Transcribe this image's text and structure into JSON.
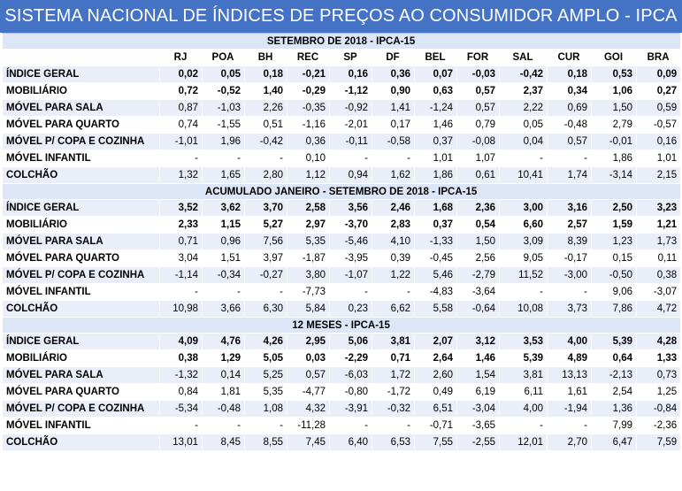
{
  "title": "SISTEMA NACIONAL DE ÍNDICES DE PREÇOS AO CONSUMIDOR AMPLO - IPCA",
  "columns": [
    "RJ",
    "POA",
    "BH",
    "REC",
    "SP",
    "DF",
    "BEL",
    "FOR",
    "SAL",
    "CUR",
    "GOI",
    "BRA"
  ],
  "sections": [
    {
      "heading": "SETEMBRO DE 2018 - IPCA-15",
      "show_columns": true,
      "rows": [
        {
          "label": "ÍNDICE GERAL",
          "bold": true,
          "values": [
            "0,02",
            "0,05",
            "0,18",
            "-0,21",
            "0,16",
            "0,36",
            "0,07",
            "-0,03",
            "-0,42",
            "0,18",
            "0,53",
            "0,09"
          ]
        },
        {
          "label": "MOBILIÁRIO",
          "bold": true,
          "values": [
            "0,72",
            "-0,52",
            "1,40",
            "-0,29",
            "-1,12",
            "0,90",
            "0,63",
            "0,57",
            "2,37",
            "0,34",
            "1,06",
            "0,27"
          ]
        },
        {
          "label": "MÓVEL PARA SALA",
          "bold": false,
          "values": [
            "0,87",
            "-1,03",
            "2,26",
            "-0,35",
            "-0,92",
            "1,41",
            "-1,24",
            "0,57",
            "2,22",
            "0,69",
            "1,50",
            "0,59"
          ]
        },
        {
          "label": "MÓVEL PARA QUARTO",
          "bold": false,
          "values": [
            "0,74",
            "-1,55",
            "0,51",
            "-1,16",
            "-2,01",
            "0,17",
            "1,46",
            "0,79",
            "0,05",
            "-0,48",
            "2,79",
            "-0,57"
          ]
        },
        {
          "label": "MÓVEL P/ COPA E COZINHA",
          "bold": false,
          "values": [
            "-1,01",
            "1,96",
            "-0,42",
            "0,36",
            "-0,11",
            "-0,58",
            "0,37",
            "-0,08",
            "0,04",
            "0,57",
            "-0,01",
            "0,16"
          ]
        },
        {
          "label": "MÓVEL INFANTIL",
          "bold": false,
          "values": [
            "-",
            "-",
            "-",
            "0,10",
            "-",
            "-",
            "1,01",
            "1,07",
            "-",
            "-",
            "1,86",
            "1,01"
          ]
        },
        {
          "label": "COLCHÃO",
          "bold": false,
          "values": [
            "1,32",
            "1,65",
            "2,80",
            "1,12",
            "0,94",
            "1,62",
            "1,86",
            "0,61",
            "10,41",
            "1,74",
            "-3,14",
            "2,15"
          ]
        }
      ]
    },
    {
      "heading": "ACUMULADO JANEIRO - SETEMBRO DE 2018 - IPCA-15",
      "show_columns": false,
      "rows": [
        {
          "label": "ÍNDICE GERAL",
          "bold": true,
          "values": [
            "3,52",
            "3,62",
            "3,70",
            "2,58",
            "3,56",
            "2,46",
            "1,68",
            "2,36",
            "3,00",
            "3,16",
            "2,50",
            "3,23"
          ]
        },
        {
          "label": "MOBILIÁRIO",
          "bold": true,
          "values": [
            "2,33",
            "1,15",
            "5,27",
            "2,97",
            "-3,70",
            "2,83",
            "0,37",
            "0,54",
            "6,60",
            "2,57",
            "1,59",
            "1,21"
          ]
        },
        {
          "label": "MÓVEL PARA SALA",
          "bold": false,
          "values": [
            "0,71",
            "0,96",
            "7,56",
            "5,35",
            "-5,46",
            "4,10",
            "-1,33",
            "1,50",
            "3,09",
            "8,39",
            "1,23",
            "1,73"
          ]
        },
        {
          "label": "MÓVEL PARA QUARTO",
          "bold": false,
          "values": [
            "3,04",
            "1,51",
            "3,97",
            "-1,87",
            "-3,95",
            "0,39",
            "-0,45",
            "2,56",
            "9,05",
            "-0,17",
            "0,15",
            "0,11"
          ]
        },
        {
          "label": "MÓVEL P/ COPA E COZINHA",
          "bold": false,
          "values": [
            "-1,14",
            "-0,34",
            "-0,27",
            "3,80",
            "-1,07",
            "1,22",
            "5,46",
            "-2,79",
            "11,52",
            "-3,00",
            "-0,50",
            "0,38"
          ]
        },
        {
          "label": "MÓVEL INFANTIL",
          "bold": false,
          "values": [
            "-",
            "-",
            "-",
            "-7,73",
            "-",
            "-",
            "-4,83",
            "-3,64",
            "-",
            "-",
            "9,06",
            "-3,07"
          ]
        },
        {
          "label": "COLCHÃO",
          "bold": false,
          "values": [
            "10,98",
            "3,66",
            "6,30",
            "5,84",
            "0,23",
            "6,62",
            "5,58",
            "-0,64",
            "10,08",
            "3,73",
            "7,86",
            "4,72"
          ]
        }
      ]
    },
    {
      "heading": "12 MESES - IPCA-15",
      "show_columns": false,
      "rows": [
        {
          "label": "ÍNDICE GERAL",
          "bold": true,
          "values": [
            "4,09",
            "4,76",
            "4,26",
            "2,95",
            "5,06",
            "3,81",
            "2,07",
            "3,12",
            "3,53",
            "4,00",
            "5,39",
            "4,28"
          ]
        },
        {
          "label": "MOBILIÁRIO",
          "bold": true,
          "values": [
            "0,38",
            "1,29",
            "5,05",
            "0,03",
            "-2,29",
            "0,71",
            "2,64",
            "1,46",
            "5,39",
            "4,89",
            "0,64",
            "1,33"
          ]
        },
        {
          "label": "MÓVEL PARA SALA",
          "bold": false,
          "values": [
            "-1,32",
            "0,14",
            "5,25",
            "0,57",
            "-6,03",
            "1,72",
            "2,60",
            "1,54",
            "3,81",
            "13,13",
            "-2,13",
            "0,73"
          ]
        },
        {
          "label": "MÓVEL PARA QUARTO",
          "bold": false,
          "values": [
            "0,84",
            "1,81",
            "5,35",
            "-4,77",
            "-0,80",
            "-1,72",
            "0,49",
            "6,19",
            "6,11",
            "1,61",
            "2,54",
            "1,25"
          ]
        },
        {
          "label": "MÓVEL P/ COPA E COZINHA",
          "bold": false,
          "values": [
            "-5,34",
            "-0,48",
            "1,08",
            "4,32",
            "-3,91",
            "-0,32",
            "6,51",
            "-3,04",
            "4,00",
            "-1,94",
            "1,36",
            "-0,84"
          ]
        },
        {
          "label": "MÓVEL INFANTIL",
          "bold": false,
          "values": [
            "-",
            "-",
            "-",
            "-11,28",
            "-",
            "-",
            "-0,71",
            "-3,65",
            "-",
            "-",
            "7,99",
            "-2,36"
          ]
        },
        {
          "label": "COLCHÃO",
          "bold": false,
          "values": [
            "13,01",
            "8,45",
            "8,55",
            "7,45",
            "6,40",
            "6,53",
            "7,55",
            "-2,55",
            "12,01",
            "2,70",
            "6,47",
            "7,59"
          ]
        }
      ]
    }
  ]
}
